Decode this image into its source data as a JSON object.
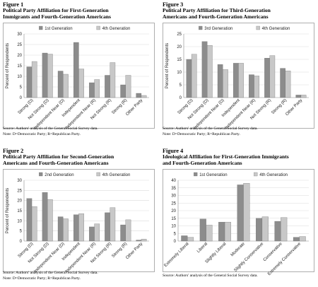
{
  "figures": [
    {
      "number": "Figure 1",
      "title_lines": [
        "Political Party Affiliation for First-Generation",
        "Immigrants and Fourth-Generation Americans"
      ],
      "source": "Source: Authors' analysis of the General Social Survey data.",
      "note": "Note: D=Democratic Party; R=Republican Party."
    },
    {
      "number": "Figure 2",
      "title_lines": [
        "Political Party Affiliation for Second-Generation",
        "Americans and Fourth-Generation Americans"
      ],
      "source": "Source: Authors' analysis of the General Social Survey data.",
      "note": "Note: D=Democratic Party; R=Republican Party."
    },
    {
      "number": "Figure 3",
      "title_lines": [
        "Political Party Affiliation for Third-Generation",
        "Americans and Fourth-Generation Americans"
      ],
      "source": "Source: Authors' analysis of the General Social Survey data.",
      "note": "Note: D=Democratic Party; R=Republican Party."
    },
    {
      "number": "Figure 4",
      "title_lines": [
        "Ideological Affiliation for First-Generation Immigrants",
        "and Fourth-Generation Americans"
      ],
      "source": "Source: Authors' analysis of the General Social Survey data.",
      "note": ""
    }
  ],
  "colors": {
    "series_a": "#8c8c8c",
    "series_b": "#c8c8c8",
    "grid": "#d9d9d9",
    "axis": "#888888",
    "frame": "#9a9a9a"
  },
  "chart_data": [
    {
      "type": "bar",
      "figure": "Figure 1",
      "ylabel": "Percent of Respondents",
      "ylim": [
        0,
        30
      ],
      "yticks": [
        0,
        5,
        10,
        15,
        20,
        25,
        30
      ],
      "grid": true,
      "legend": "top",
      "categories": [
        "Strong (D)",
        "Not Strong (D)",
        "Independent Near (D)",
        "Independent",
        "Independent Near (R)",
        "Not Strong (R)",
        "Strong (R)",
        "Other Party"
      ],
      "series": [
        {
          "name": "1st Generation",
          "values": [
            14.5,
            21,
            12.5,
            26,
            7,
            10.5,
            6,
            2
          ]
        },
        {
          "name": "4th Generation",
          "values": [
            17,
            20.5,
            11,
            13.5,
            8.5,
            16.5,
            10.5,
            1
          ]
        }
      ]
    },
    {
      "type": "bar",
      "figure": "Figure 2",
      "ylabel": "Percent of Respondents",
      "ylim": [
        0,
        30
      ],
      "yticks": [
        0,
        5,
        10,
        15,
        20,
        25,
        30
      ],
      "grid": true,
      "legend": "top",
      "categories": [
        "Strong (D)",
        "Not Strong (D)",
        "Independent Near (D)",
        "Independent",
        "Independent Near (R)",
        "Not Strong (R)",
        "Strong (R)",
        "Other Party"
      ],
      "series": [
        {
          "name": "2nd Generation",
          "values": [
            21,
            24,
            12,
            13,
            7,
            14,
            8,
            0.5
          ]
        },
        {
          "name": "4th Generation",
          "values": [
            17,
            20.5,
            11,
            13.5,
            8.5,
            16.5,
            10.5,
            1
          ]
        }
      ]
    },
    {
      "type": "bar",
      "figure": "Figure 3",
      "ylabel": "Percent of Respondents",
      "ylim": [
        0,
        25
      ],
      "yticks": [
        0,
        5,
        10,
        15,
        20,
        25
      ],
      "grid": true,
      "legend": "top",
      "categories": [
        "Strong (D)",
        "Not Strong (D)",
        "Independent Near (D)",
        "Independent",
        "Independent Near (R)",
        "Not Strong (R)",
        "Strong (R)",
        "Other Party"
      ],
      "series": [
        {
          "name": "3rd Generation",
          "values": [
            15,
            22,
            13,
            13.5,
            9,
            15.5,
            11.5,
            1
          ]
        },
        {
          "name": "4th Generation",
          "values": [
            17,
            20.5,
            11,
            13.5,
            8.5,
            16.5,
            10.5,
            1
          ]
        }
      ]
    },
    {
      "type": "bar",
      "figure": "Figure 4",
      "ylabel": "",
      "ylim": [
        0,
        40
      ],
      "yticks": [
        0,
        5,
        10,
        15,
        20,
        25,
        30,
        35,
        40
      ],
      "grid": true,
      "legend": "top",
      "categories": [
        "Extremely Liberal",
        "Liberal",
        "Slightly Liberal",
        "Moderate",
        "Slightly Conservative",
        "Conservative",
        "Extremely Conservative"
      ],
      "series": [
        {
          "name": "1st Generation",
          "values": [
            3.5,
            14.5,
            12.5,
            37,
            15,
            13,
            2.5
          ]
        },
        {
          "name": "4th Generation",
          "values": [
            2.5,
            10.5,
            12.5,
            38,
            16,
            15.5,
            3
          ]
        }
      ]
    }
  ]
}
